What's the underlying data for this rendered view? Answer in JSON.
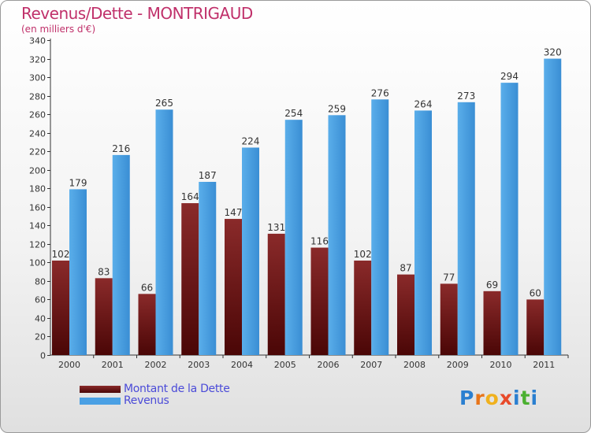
{
  "chart_data": {
    "type": "bar",
    "title": "Revenus/Dette - MONTRIGAUD",
    "subtitle": "(en milliers d'€)",
    "categories": [
      "2000",
      "2001",
      "2002",
      "2003",
      "2004",
      "2005",
      "2006",
      "2007",
      "2008",
      "2009",
      "2010",
      "2011"
    ],
    "series": [
      {
        "name": "Montant de la Dette",
        "color": "#7a1a1a",
        "values": [
          102,
          83,
          66,
          164,
          147,
          131,
          116,
          102,
          87,
          77,
          69,
          60
        ]
      },
      {
        "name": "Revenus",
        "color": "#4aa0e4",
        "values": [
          179,
          216,
          265,
          187,
          224,
          254,
          259,
          276,
          264,
          273,
          294,
          320
        ]
      }
    ],
    "ylim": [
      0,
      340
    ],
    "yticks": [
      0,
      20,
      40,
      60,
      80,
      100,
      120,
      140,
      160,
      180,
      200,
      220,
      240,
      260,
      280,
      300,
      320,
      340
    ],
    "grid": false,
    "legend_position": "bottom-left"
  },
  "logo": {
    "letters": [
      "P",
      "r",
      "o",
      "x",
      "i",
      "t",
      "i"
    ],
    "colors": [
      "#2a7fd0",
      "#e8751a",
      "#f0b11e",
      "#e84a2a",
      "#2a7fd0",
      "#4bb030",
      "#2a7fd0"
    ]
  }
}
